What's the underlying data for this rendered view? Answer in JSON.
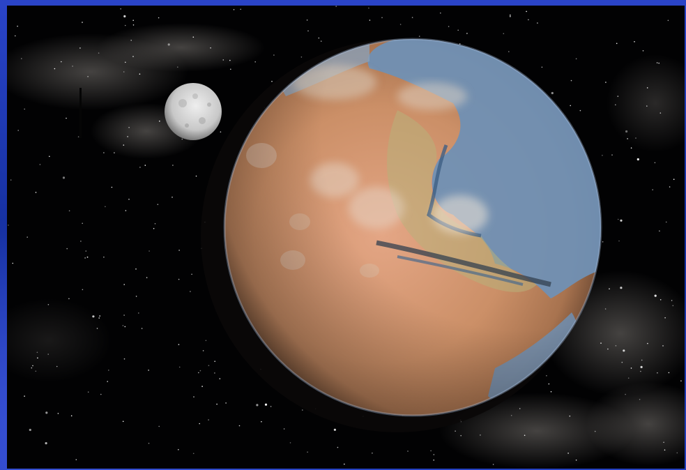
{
  "colors": {
    "frame": "#1b2fa8",
    "space": "#020203",
    "planet_land": "#c98f68",
    "planet_ocean": "#6f8fb3",
    "moon": "#cfcfcf"
  },
  "icons": {
    "planet": "terraformed-mars",
    "moon": "small-moon",
    "nebula": "galaxy-cloud"
  }
}
